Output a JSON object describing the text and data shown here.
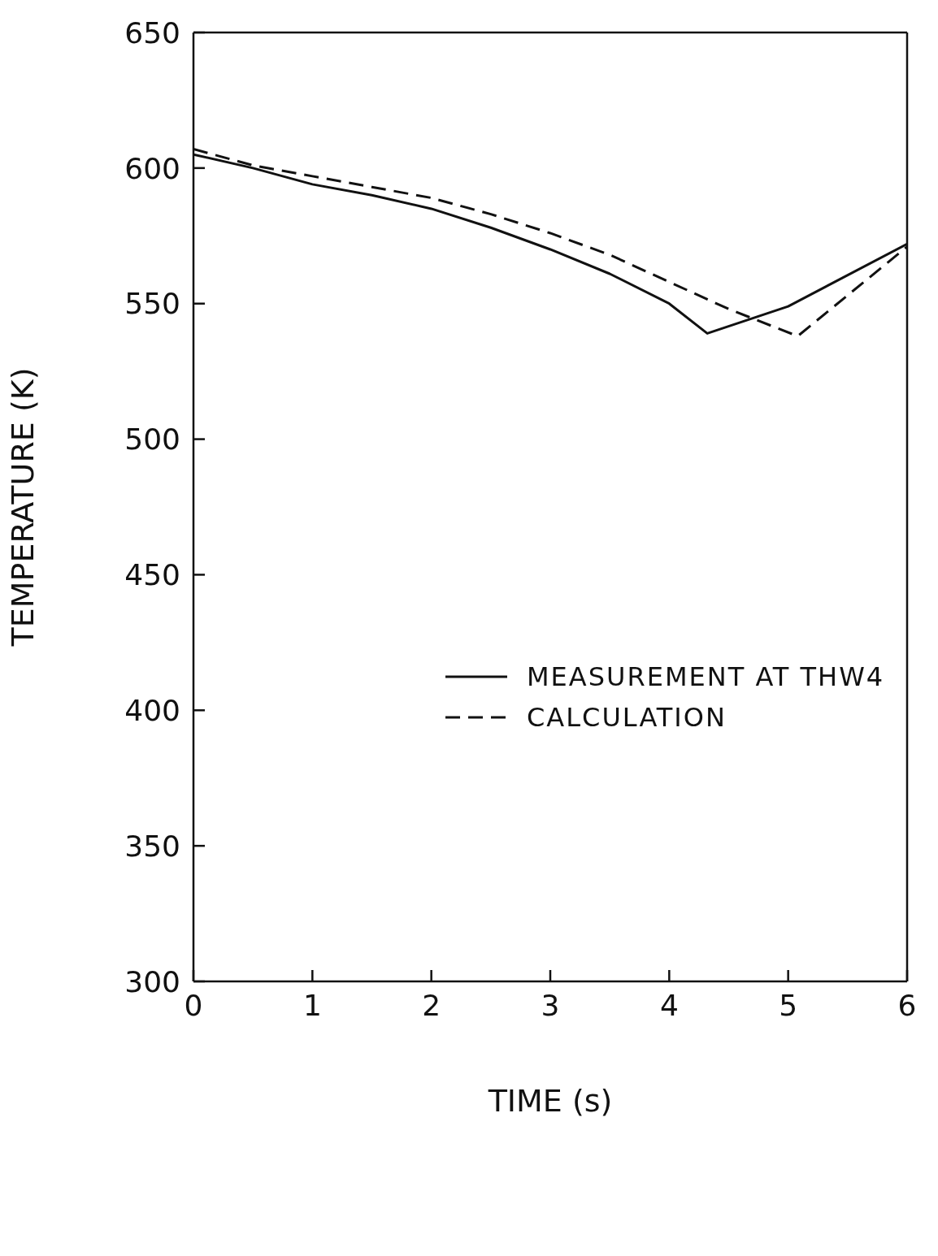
{
  "chart_data": {
    "type": "line",
    "xlabel": "TIME (s)",
    "ylabel": "TEMPERATURE (K)",
    "x": [
      0,
      0.5,
      1,
      1.5,
      2,
      2.5,
      3,
      3.5,
      4,
      4.32,
      5,
      6
    ],
    "series": [
      {
        "name": "MEASUREMENT AT THW4",
        "color": "#111111",
        "line_style": "solid",
        "values": [
          605,
          600,
          594,
          590,
          585,
          578,
          570,
          561,
          550,
          539,
          549,
          572
        ]
      },
      {
        "name": "CALCULATION",
        "color": "#111111",
        "line_style": "dashed",
        "x": [
          0,
          0.5,
          1,
          1.5,
          2,
          2.5,
          3,
          3.5,
          4,
          4.5,
          5.08,
          6
        ],
        "values": [
          607,
          601,
          597,
          593,
          589,
          583,
          576,
          568,
          558,
          548,
          538,
          571
        ]
      }
    ],
    "xlim": [
      0,
      6
    ],
    "xticks": [
      0,
      1,
      2,
      3,
      4,
      5,
      6
    ],
    "ylim": [
      300,
      650
    ],
    "yticks": [
      300,
      350,
      400,
      450,
      500,
      550,
      600,
      650
    ],
    "legend": "right",
    "marker": "none"
  }
}
